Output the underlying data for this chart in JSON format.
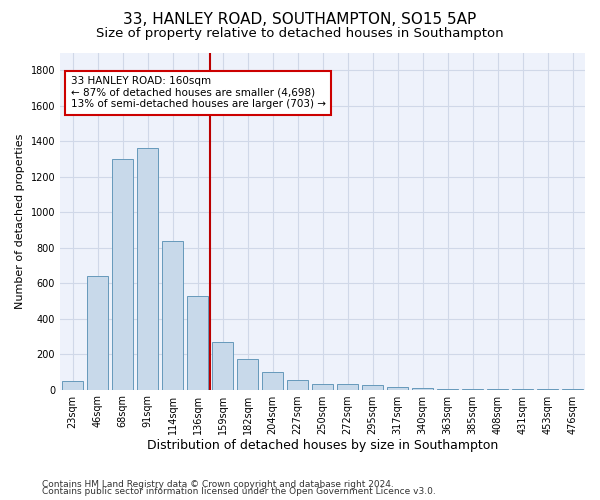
{
  "title1": "33, HANLEY ROAD, SOUTHAMPTON, SO15 5AP",
  "title2": "Size of property relative to detached houses in Southampton",
  "xlabel": "Distribution of detached houses by size in Southampton",
  "ylabel": "Number of detached properties",
  "categories": [
    "23sqm",
    "46sqm",
    "68sqm",
    "91sqm",
    "114sqm",
    "136sqm",
    "159sqm",
    "182sqm",
    "204sqm",
    "227sqm",
    "250sqm",
    "272sqm",
    "295sqm",
    "317sqm",
    "340sqm",
    "363sqm",
    "385sqm",
    "408sqm",
    "431sqm",
    "453sqm",
    "476sqm"
  ],
  "values": [
    50,
    640,
    1300,
    1360,
    840,
    530,
    270,
    175,
    100,
    55,
    30,
    30,
    25,
    15,
    10,
    5,
    5,
    5,
    5,
    2,
    2
  ],
  "bar_color": "#c8d9ea",
  "bar_edge_color": "#6699bb",
  "vline_x_idx": 6,
  "vline_color": "#bb0000",
  "annotation_text": "33 HANLEY ROAD: 160sqm\n← 87% of detached houses are smaller (4,698)\n13% of semi-detached houses are larger (703) →",
  "annotation_box_color": "#ffffff",
  "annotation_box_edge": "#cc0000",
  "ylim": [
    0,
    1900
  ],
  "yticks": [
    0,
    200,
    400,
    600,
    800,
    1000,
    1200,
    1400,
    1600,
    1800
  ],
  "bg_color": "#ffffff",
  "plot_bg_color": "#eef2fb",
  "grid_color": "#d0d8e8",
  "footer1": "Contains HM Land Registry data © Crown copyright and database right 2024.",
  "footer2": "Contains public sector information licensed under the Open Government Licence v3.0.",
  "title1_fontsize": 11,
  "title2_fontsize": 9.5,
  "xlabel_fontsize": 9,
  "ylabel_fontsize": 8,
  "tick_fontsize": 7,
  "footer_fontsize": 6.5,
  "ann_fontsize": 7.5
}
